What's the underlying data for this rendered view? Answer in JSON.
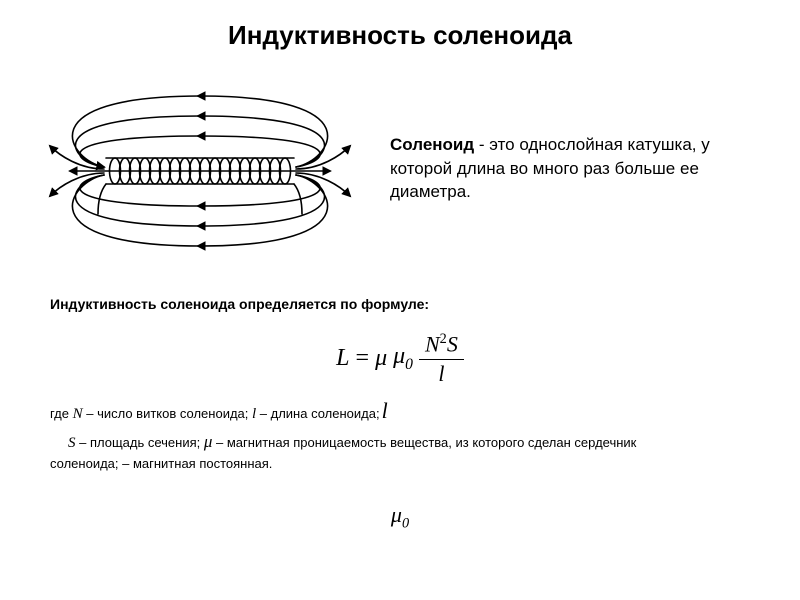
{
  "title": "Индуктивность соленоида",
  "definition": {
    "term": "Соленоид",
    "dash": " - ",
    "text": "это однослойная катушка, у которой длина во много раз больше ее диаметра."
  },
  "formula_intro": "Индуктивность соленоида определяется по формуле:",
  "formula": {
    "L": "L",
    "eq": "=",
    "mu": "μ",
    "mu0": "μ",
    "mu0_sub": "0",
    "N": "N",
    "N_exp": "2",
    "S": "S",
    "l": "l"
  },
  "legend": {
    "line1_a": "где ",
    "N_var": "N",
    "line1_b": " – число витков соленоида; ",
    "l_var": "l",
    "line1_c": " –  длина соленоида;",
    "l_trail": "l",
    "S_var": "S",
    "line2_a": " – площадь сечения;   ",
    "mu_var": "μ",
    "line2_b": " – магнитная проницаемость вещества, из которого сделан сердечник",
    "line3_a": "соленоида;        –   магнитная постоянная."
  },
  "mu0_const": {
    "mu": "μ",
    "sub": "0"
  },
  "diagram": {
    "stroke": "#000000",
    "stroke_width": 1.6,
    "coil_turns": 18
  }
}
